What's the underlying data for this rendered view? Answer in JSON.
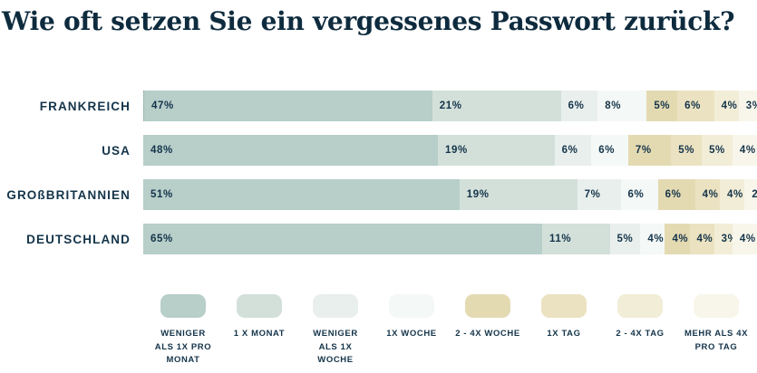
{
  "text_color": "#14344a",
  "background_color": "#ffffff",
  "chart_data": {
    "type": "bar",
    "orientation": "horizontal",
    "stacked": true,
    "title": "Wie oft setzen Sie ein vergessenes Passwort zurück?",
    "categories": [
      "FRANKREICH",
      "USA",
      "GROßBRITANNIEN",
      "DEUTSCHLAND"
    ],
    "value_suffix": "%",
    "xlim": [
      0,
      100
    ],
    "grid": false,
    "legend_position": "bottom",
    "series": [
      {
        "name": "Weniger als 1x pro Monat",
        "legend_label": "WENIGER\nALS 1X PRO\nMONAT",
        "color": "#b7cec9",
        "values": [
          47,
          48,
          51,
          65
        ]
      },
      {
        "name": "1 x Monat",
        "legend_label": "1 X MONAT",
        "color": "#d3e0da",
        "values": [
          21,
          19,
          19,
          11
        ]
      },
      {
        "name": "Weniger als 1x Woche",
        "legend_label": "WENIGER\nALS 1X\nWOCHE",
        "color": "#e9efec",
        "values": [
          6,
          6,
          7,
          5
        ]
      },
      {
        "name": "1x Woche",
        "legend_label": "1X WOCHE",
        "color": "#f4f8f6",
        "values": [
          8,
          6,
          6,
          4
        ]
      },
      {
        "name": "2 - 4x Woche",
        "legend_label": "2 - 4X WOCHE",
        "color": "#e4dab2",
        "values": [
          5,
          7,
          6,
          4
        ]
      },
      {
        "name": "1x Tag",
        "legend_label": "1X TAG",
        "color": "#ebe2c1",
        "values": [
          6,
          5,
          4,
          4
        ]
      },
      {
        "name": "2 - 4x Tag",
        "legend_label": "2 - 4X TAG",
        "color": "#f2edd7",
        "values": [
          4,
          5,
          4,
          3
        ]
      },
      {
        "name": "Mehr als 4x pro Tag",
        "legend_label": "MEHR ALS 4X\nPRO TAG",
        "color": "#f8f6eb",
        "values": [
          3,
          4,
          2,
          4
        ]
      }
    ]
  }
}
